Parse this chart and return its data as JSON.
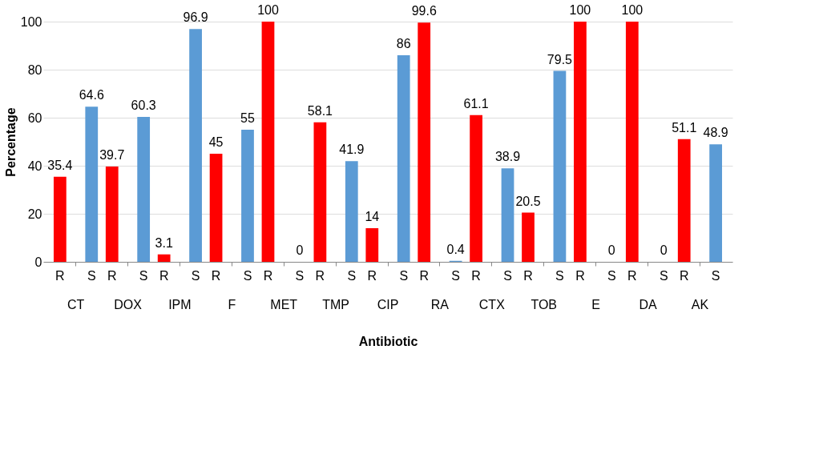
{
  "chart_data": {
    "type": "bar",
    "xlabel": "Antibiotic",
    "ylabel": "Percentage",
    "categories": [
      "CT",
      "DOX",
      "IPM",
      "F",
      "MET",
      "TMP",
      "CIP",
      "RA",
      "CTX",
      "TOB",
      "E",
      "DA",
      "AK"
    ],
    "series": [
      {
        "name": "R",
        "color": "#ff0000",
        "values": [
          35.4,
          39.7,
          3.1,
          45,
          100,
          58.1,
          14,
          99.6,
          61.1,
          20.5,
          100,
          100,
          51.1
        ]
      },
      {
        "name": "S",
        "color": "#5b9bd5",
        "values": [
          64.6,
          60.3,
          96.9,
          55,
          0,
          41.9,
          86,
          0.4,
          38.9,
          79.5,
          0,
          0,
          48.9
        ]
      }
    ],
    "ylim": [
      0,
      100
    ],
    "yticks": [
      0,
      20,
      40,
      60,
      80,
      100
    ],
    "grid": "y",
    "legend": false,
    "data_labels": true
  }
}
